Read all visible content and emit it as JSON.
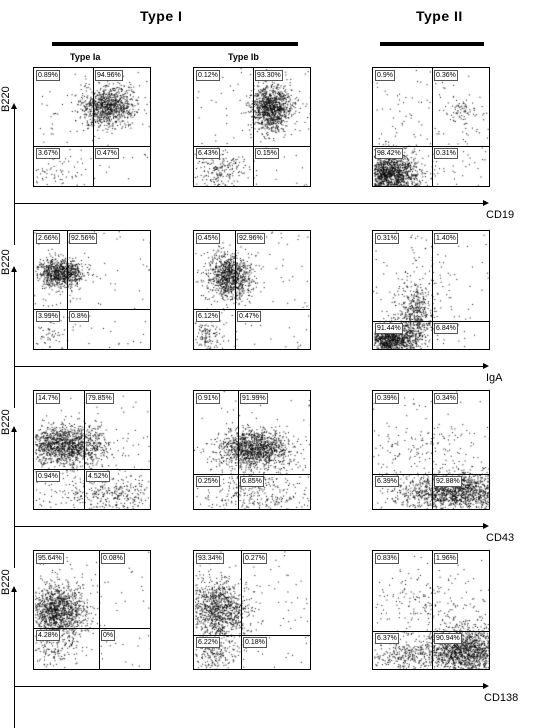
{
  "headers": {
    "type1": "Type I",
    "type2": "Type II",
    "type1a": "Type Ia",
    "type1b": "Type Ib"
  },
  "rows": [
    {
      "y_label": "B220",
      "x_label": "CD19",
      "plots": [
        {
          "q": [
            "0.89%",
            "94.96%",
            "3.67%",
            "0.47%"
          ]
        },
        {
          "q": [
            "0.12%",
            "93.30%",
            "6.43%",
            "0.15%"
          ]
        },
        {
          "q": [
            "0.9%",
            "0.36%",
            "98.42%",
            "0.31%"
          ]
        }
      ]
    },
    {
      "y_label": "B220",
      "x_label": "IgA",
      "plots": [
        {
          "q": [
            "2.66%",
            "92.56%",
            "3.99%",
            "0.8%"
          ]
        },
        {
          "q": [
            "0.45%",
            "92.96%",
            "6.12%",
            "0.47%"
          ]
        },
        {
          "q": [
            "0.31%",
            "1.40%",
            "91.44%",
            "6.84%"
          ]
        }
      ]
    },
    {
      "y_label": "B220",
      "x_label": "CD43",
      "plots": [
        {
          "q": [
            "14.7%",
            "79.85%",
            "0.94%",
            "4.52%"
          ]
        },
        {
          "q": [
            "0.91%",
            "91.99%",
            "0.25%",
            "6.85%"
          ]
        },
        {
          "q": [
            "0.39%",
            "0.34%",
            "6.39%",
            "92.88%"
          ]
        }
      ]
    },
    {
      "y_label": "B220",
      "x_label": "CD138",
      "plots": [
        {
          "q": [
            "95.64%",
            "0.08%",
            "4.28%",
            "0%"
          ]
        },
        {
          "q": [
            "93.34%",
            "0.27%",
            "6.22%",
            "0.18%"
          ]
        },
        {
          "q": [
            "0.83%",
            "1.96%",
            "6.37%",
            "90.94%"
          ]
        }
      ]
    }
  ]
}
